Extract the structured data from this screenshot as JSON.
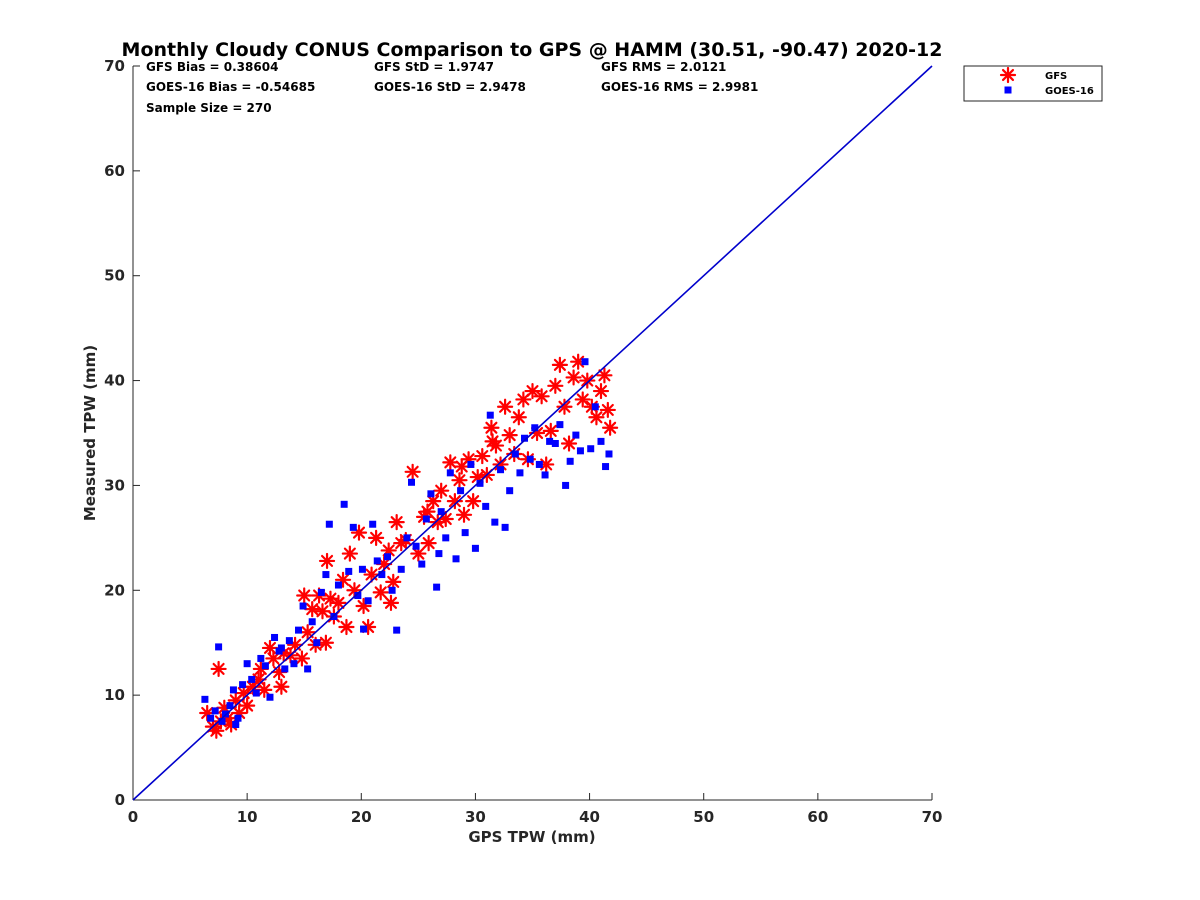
{
  "chart_data": {
    "type": "scatter",
    "title": "Monthly Cloudy CONUS Comparison to GPS @ HAMM (30.51, -90.47) 2020-12",
    "xlabel": "GPS TPW (mm)",
    "ylabel": "Measured TPW (mm)",
    "xlim": [
      0,
      70
    ],
    "ylim": [
      0,
      70
    ],
    "xticks": [
      "0",
      "10",
      "20",
      "30",
      "40",
      "50",
      "60",
      "70"
    ],
    "yticks": [
      "0",
      "10",
      "20",
      "30",
      "40",
      "50",
      "60",
      "70"
    ],
    "grid": false,
    "legend_position": "top-right, outside",
    "stats": {
      "gfs_bias": "GFS Bias = 0.38604",
      "gfs_std": "GFS StD = 1.9747",
      "gfs_rms": "GFS RMS = 2.0121",
      "goes_bias": "GOES-16 Bias = -0.54685",
      "goes_std": "GOES-16 StD = 2.9478",
      "goes_rms": "GOES-16 RMS = 2.9981",
      "sample_size": "Sample Size = 270"
    },
    "reference_line": {
      "from": [
        0,
        0
      ],
      "to": [
        70,
        70
      ],
      "color": "#0000cc"
    },
    "series": [
      {
        "name": "GFS",
        "marker": "asterisk",
        "color": "#ff0000",
        "points": [
          [
            6.5,
            8.3
          ],
          [
            7.0,
            7.0
          ],
          [
            7.3,
            6.6
          ],
          [
            7.5,
            12.5
          ],
          [
            7.7,
            7.5
          ],
          [
            8.0,
            8.8
          ],
          [
            8.3,
            7.8
          ],
          [
            8.6,
            7.2
          ],
          [
            9.0,
            9.5
          ],
          [
            9.3,
            8.3
          ],
          [
            9.7,
            10.2
          ],
          [
            10.0,
            9.0
          ],
          [
            10.5,
            10.8
          ],
          [
            11.0,
            11.5
          ],
          [
            11.5,
            10.5
          ],
          [
            12.0,
            14.5
          ],
          [
            12.3,
            13.5
          ],
          [
            12.8,
            12.2
          ],
          [
            13.0,
            10.8
          ],
          [
            13.2,
            14.0
          ],
          [
            13.8,
            13.8
          ],
          [
            14.2,
            14.8
          ],
          [
            14.8,
            13.5
          ],
          [
            15.0,
            19.5
          ],
          [
            15.3,
            16.0
          ],
          [
            15.7,
            18.2
          ],
          [
            16.0,
            14.8
          ],
          [
            16.3,
            19.5
          ],
          [
            16.6,
            18.0
          ],
          [
            17.0,
            22.8
          ],
          [
            17.3,
            19.2
          ],
          [
            17.6,
            17.5
          ],
          [
            18.0,
            18.8
          ],
          [
            18.4,
            21.0
          ],
          [
            18.7,
            16.5
          ],
          [
            19.0,
            23.5
          ],
          [
            19.4,
            20.0
          ],
          [
            19.8,
            25.5
          ],
          [
            20.2,
            18.5
          ],
          [
            20.6,
            16.5
          ],
          [
            20.9,
            21.5
          ],
          [
            21.3,
            25.0
          ],
          [
            21.7,
            19.8
          ],
          [
            22.0,
            22.5
          ],
          [
            22.4,
            23.8
          ],
          [
            22.8,
            20.8
          ],
          [
            23.1,
            26.5
          ],
          [
            23.5,
            24.5
          ],
          [
            23.9,
            24.8
          ],
          [
            24.5,
            31.3
          ],
          [
            25.0,
            23.5
          ],
          [
            25.5,
            27.0
          ],
          [
            25.9,
            24.5
          ],
          [
            26.3,
            28.5
          ],
          [
            26.7,
            26.5
          ],
          [
            27.0,
            29.5
          ],
          [
            27.4,
            26.8
          ],
          [
            27.8,
            32.2
          ],
          [
            28.2,
            28.5
          ],
          [
            28.6,
            30.5
          ],
          [
            29.0,
            27.2
          ],
          [
            29.4,
            32.5
          ],
          [
            29.8,
            28.5
          ],
          [
            30.2,
            30.8
          ],
          [
            30.6,
            32.8
          ],
          [
            31.0,
            31.0
          ],
          [
            31.4,
            35.5
          ],
          [
            31.8,
            33.8
          ],
          [
            32.2,
            32.0
          ],
          [
            32.6,
            37.5
          ],
          [
            33.0,
            34.8
          ],
          [
            33.4,
            33.0
          ],
          [
            33.8,
            36.5
          ],
          [
            34.2,
            38.2
          ],
          [
            34.6,
            32.5
          ],
          [
            35.0,
            39.0
          ],
          [
            35.4,
            35.0
          ],
          [
            35.8,
            38.5
          ],
          [
            36.2,
            32.0
          ],
          [
            36.6,
            35.2
          ],
          [
            37.0,
            39.5
          ],
          [
            37.4,
            41.5
          ],
          [
            37.8,
            37.5
          ],
          [
            38.2,
            34.0
          ],
          [
            38.6,
            40.3
          ],
          [
            39.0,
            41.8
          ],
          [
            39.4,
            38.2
          ],
          [
            39.8,
            40.0
          ],
          [
            40.2,
            37.5
          ],
          [
            40.6,
            36.5
          ],
          [
            41.0,
            39.0
          ],
          [
            41.3,
            40.5
          ],
          [
            41.6,
            37.2
          ],
          [
            41.8,
            35.5
          ],
          [
            25.8,
            27.5
          ],
          [
            28.8,
            31.8
          ],
          [
            16.9,
            15.0
          ],
          [
            11.2,
            12.5
          ],
          [
            22.6,
            18.8
          ],
          [
            31.5,
            34.2
          ]
        ]
      },
      {
        "name": "GOES-16",
        "marker": "square",
        "color": "#0000ff",
        "points": [
          [
            6.3,
            9.6
          ],
          [
            6.8,
            7.8
          ],
          [
            7.2,
            8.5
          ],
          [
            7.5,
            14.6
          ],
          [
            7.8,
            7.5
          ],
          [
            8.1,
            8.2
          ],
          [
            8.5,
            9.0
          ],
          [
            8.8,
            10.5
          ],
          [
            9.2,
            7.8
          ],
          [
            9.6,
            11.0
          ],
          [
            10.0,
            13.0
          ],
          [
            10.4,
            11.5
          ],
          [
            10.8,
            10.2
          ],
          [
            11.2,
            13.5
          ],
          [
            11.6,
            12.8
          ],
          [
            12.0,
            9.8
          ],
          [
            12.4,
            15.5
          ],
          [
            12.8,
            14.2
          ],
          [
            13.3,
            12.5
          ],
          [
            13.7,
            15.2
          ],
          [
            14.1,
            13.0
          ],
          [
            14.5,
            16.2
          ],
          [
            14.9,
            18.5
          ],
          [
            15.3,
            12.5
          ],
          [
            15.7,
            17.0
          ],
          [
            16.1,
            15.0
          ],
          [
            16.5,
            19.8
          ],
          [
            16.9,
            21.5
          ],
          [
            17.2,
            26.3
          ],
          [
            17.6,
            17.5
          ],
          [
            18.0,
            20.5
          ],
          [
            18.5,
            28.2
          ],
          [
            18.9,
            21.8
          ],
          [
            19.3,
            26.0
          ],
          [
            19.7,
            19.5
          ],
          [
            20.1,
            22.0
          ],
          [
            20.6,
            19.0
          ],
          [
            21.0,
            26.3
          ],
          [
            21.4,
            22.8
          ],
          [
            21.8,
            21.5
          ],
          [
            22.3,
            23.2
          ],
          [
            22.7,
            20.0
          ],
          [
            23.1,
            16.2
          ],
          [
            23.5,
            22.0
          ],
          [
            24.0,
            25.0
          ],
          [
            24.4,
            30.3
          ],
          [
            24.8,
            24.2
          ],
          [
            25.3,
            22.5
          ],
          [
            25.7,
            26.8
          ],
          [
            26.1,
            29.2
          ],
          [
            26.6,
            20.3
          ],
          [
            27.0,
            27.5
          ],
          [
            27.4,
            25.0
          ],
          [
            27.8,
            31.2
          ],
          [
            28.3,
            23.0
          ],
          [
            28.7,
            29.5
          ],
          [
            29.1,
            25.5
          ],
          [
            29.6,
            32.0
          ],
          [
            30.0,
            24.0
          ],
          [
            30.4,
            30.2
          ],
          [
            30.9,
            28.0
          ],
          [
            31.3,
            36.7
          ],
          [
            31.7,
            26.5
          ],
          [
            32.2,
            31.5
          ],
          [
            32.6,
            26.0
          ],
          [
            33.0,
            29.5
          ],
          [
            33.5,
            33.0
          ],
          [
            33.9,
            31.2
          ],
          [
            34.3,
            34.5
          ],
          [
            34.8,
            32.5
          ],
          [
            35.2,
            35.5
          ],
          [
            35.6,
            32.0
          ],
          [
            36.1,
            31.0
          ],
          [
            36.5,
            34.2
          ],
          [
            37.0,
            34.0
          ],
          [
            37.4,
            35.8
          ],
          [
            37.9,
            30.0
          ],
          [
            38.3,
            32.3
          ],
          [
            38.8,
            34.8
          ],
          [
            39.2,
            33.3
          ],
          [
            39.6,
            41.8
          ],
          [
            40.1,
            33.5
          ],
          [
            40.5,
            37.5
          ],
          [
            41.0,
            34.2
          ],
          [
            41.4,
            31.8
          ],
          [
            41.7,
            33.0
          ],
          [
            9.0,
            7.2
          ],
          [
            13.0,
            14.5
          ],
          [
            20.2,
            16.3
          ],
          [
            26.8,
            23.5
          ]
        ]
      }
    ]
  }
}
